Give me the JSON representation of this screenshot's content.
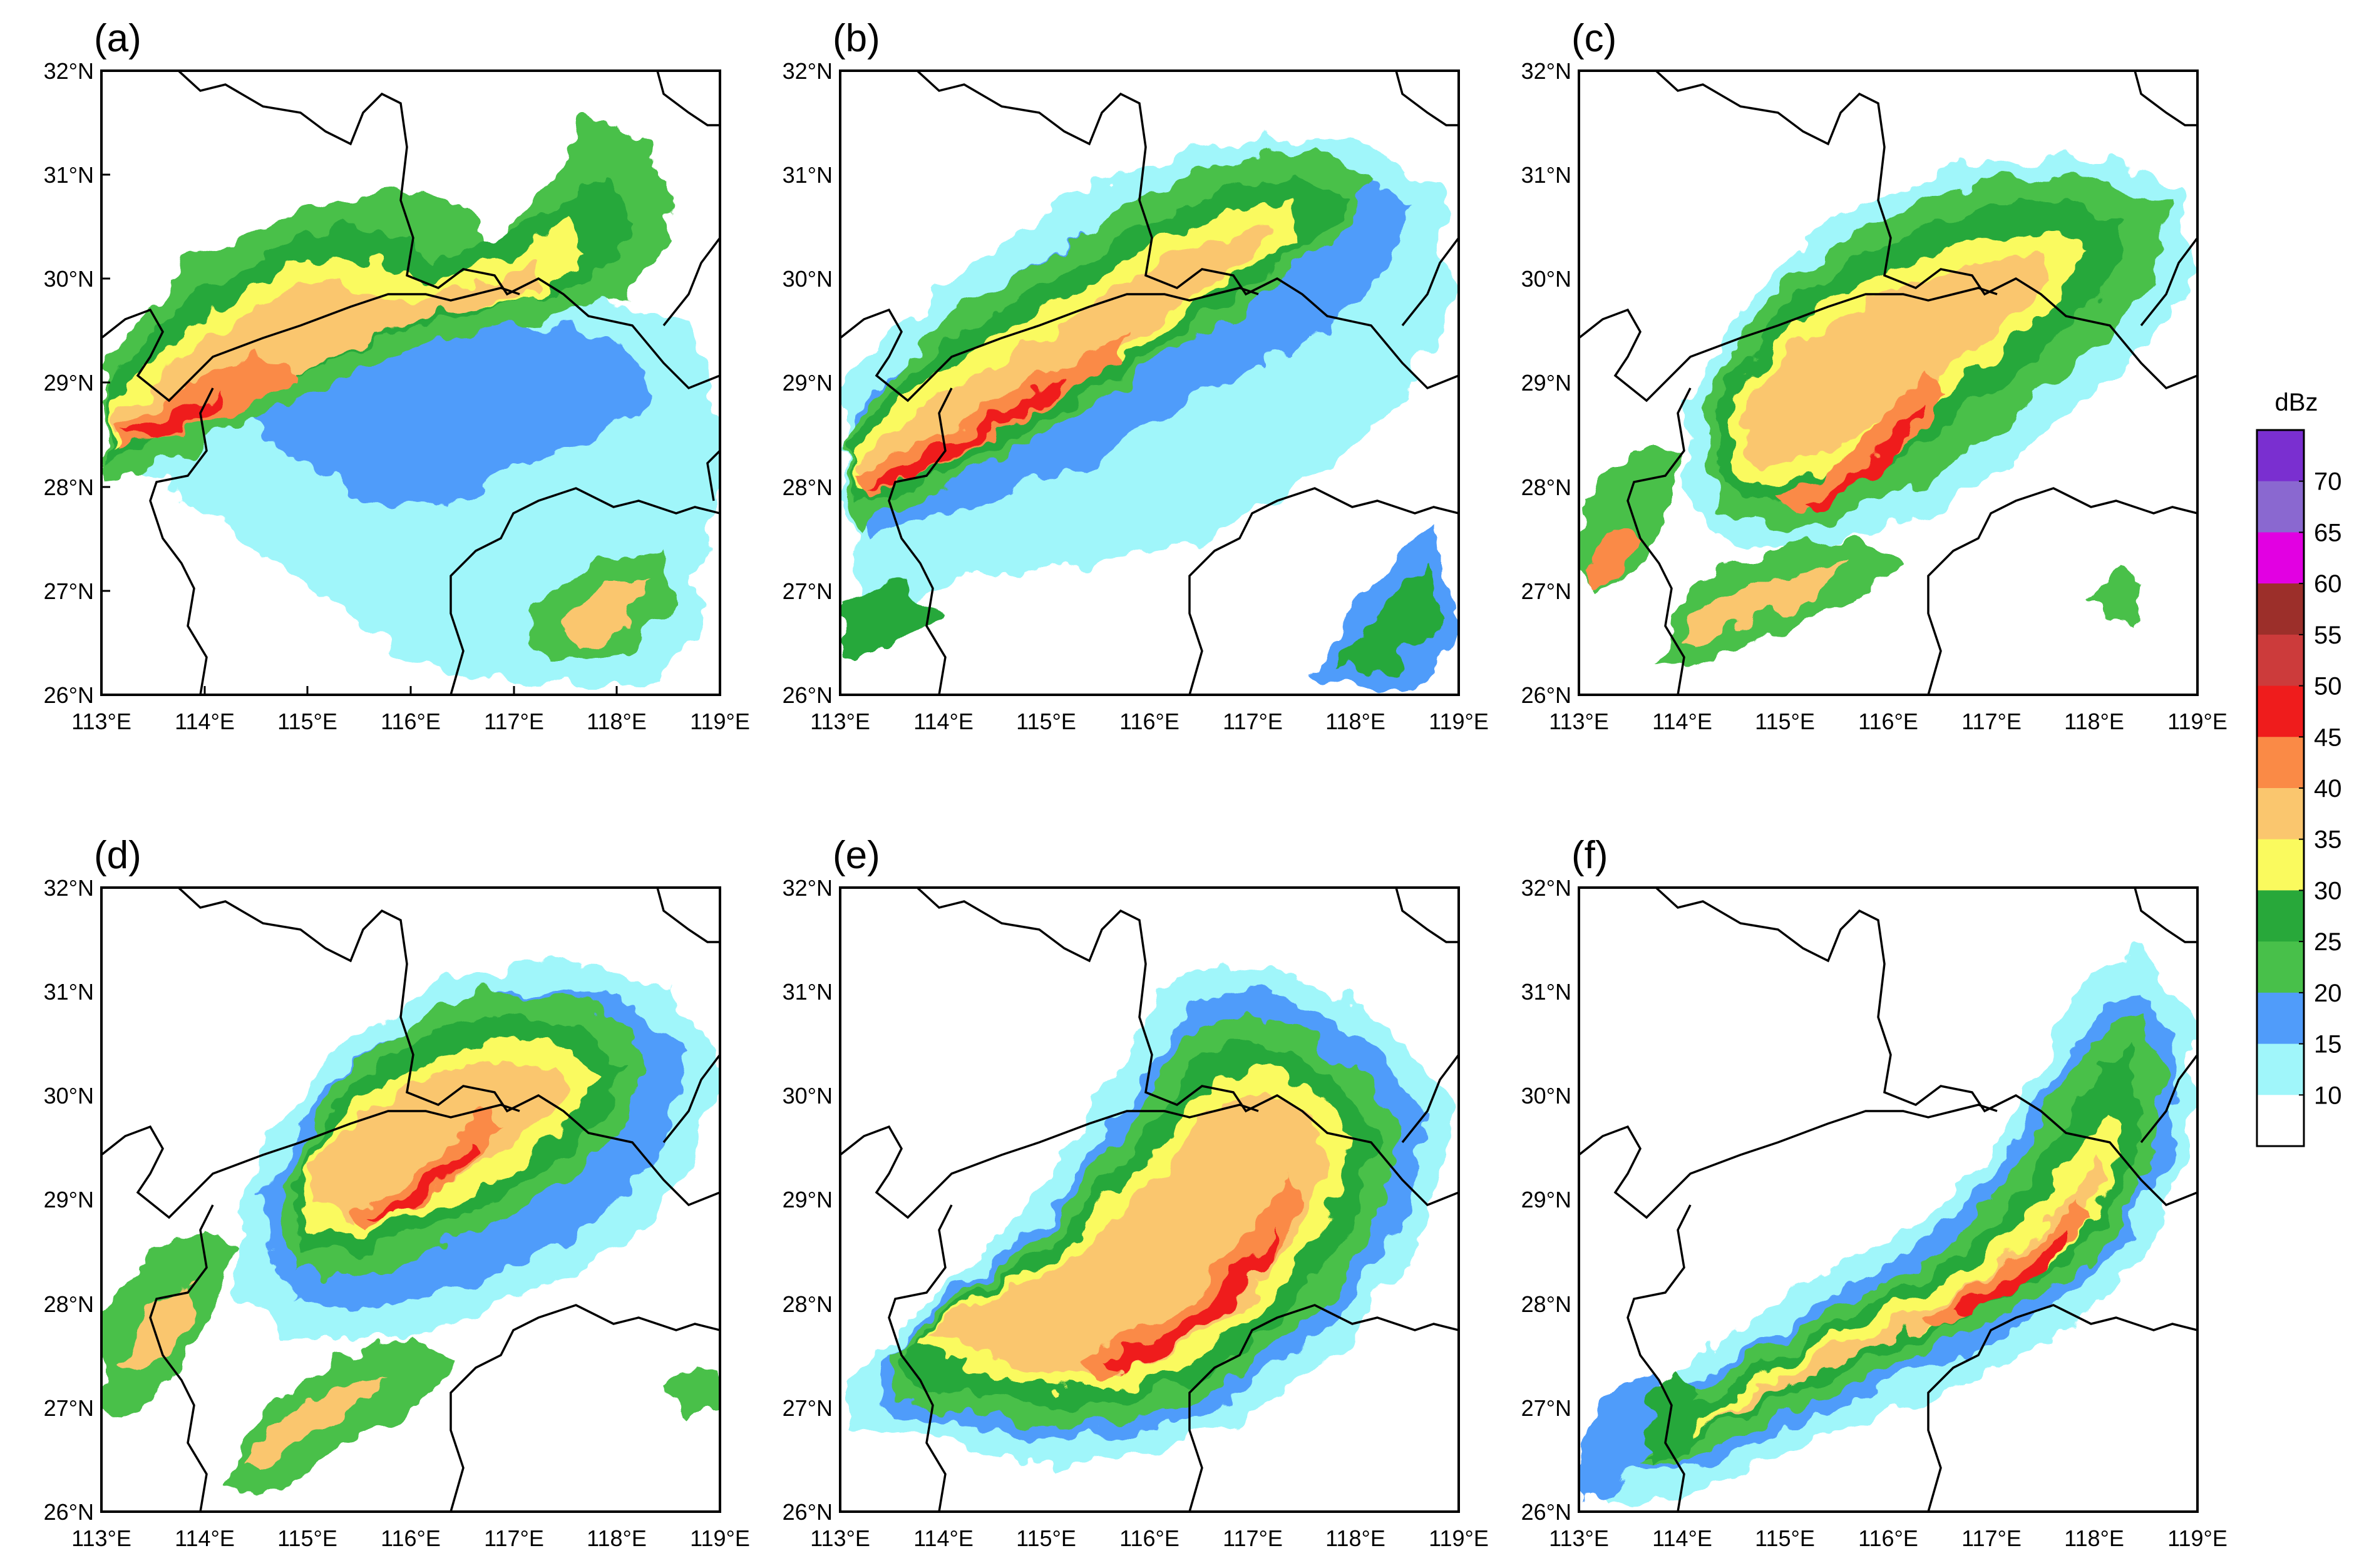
{
  "panels": [
    {
      "label": "(a)"
    },
    {
      "label": "(b)"
    },
    {
      "label": "(c)"
    },
    {
      "label": "(d)"
    },
    {
      "label": "(e)"
    },
    {
      "label": "(f)"
    }
  ],
  "axes": {
    "lat_labels": [
      "32°N",
      "31°N",
      "30°N",
      "29°N",
      "28°N",
      "27°N",
      "26°N"
    ],
    "lon_labels": [
      "113°E",
      "114°E",
      "115°E",
      "116°E",
      "117°E",
      "118°E",
      "119°E"
    ]
  },
  "colorbar": {
    "title": "dBz",
    "levels": [
      "70",
      "65",
      "60",
      "55",
      "50",
      "45",
      "40",
      "35",
      "30",
      "25",
      "20",
      "15",
      "10"
    ],
    "colors": [
      "#7a2fd0",
      "#8a68d0",
      "#e200e2",
      "#9c2f2a",
      "#cc3b3b",
      "#ef1c1c",
      "#fa8a46",
      "#fac66e",
      "#fafa5e",
      "#28a83a",
      "#48c04a",
      "#509cfa",
      "#a0f6fa",
      "#ffffff"
    ]
  },
  "palette": {
    "c10": "#a0f6fa",
    "c15": "#509cfa",
    "c20": "#48c04a",
    "c25": "#28a83a",
    "c30": "#fafa5e",
    "c35": "#fac66e",
    "c40": "#fa8a46",
    "c45": "#ef1c1c",
    "c50": "#cc3b3b",
    "c55": "#9c2f2a"
  }
}
